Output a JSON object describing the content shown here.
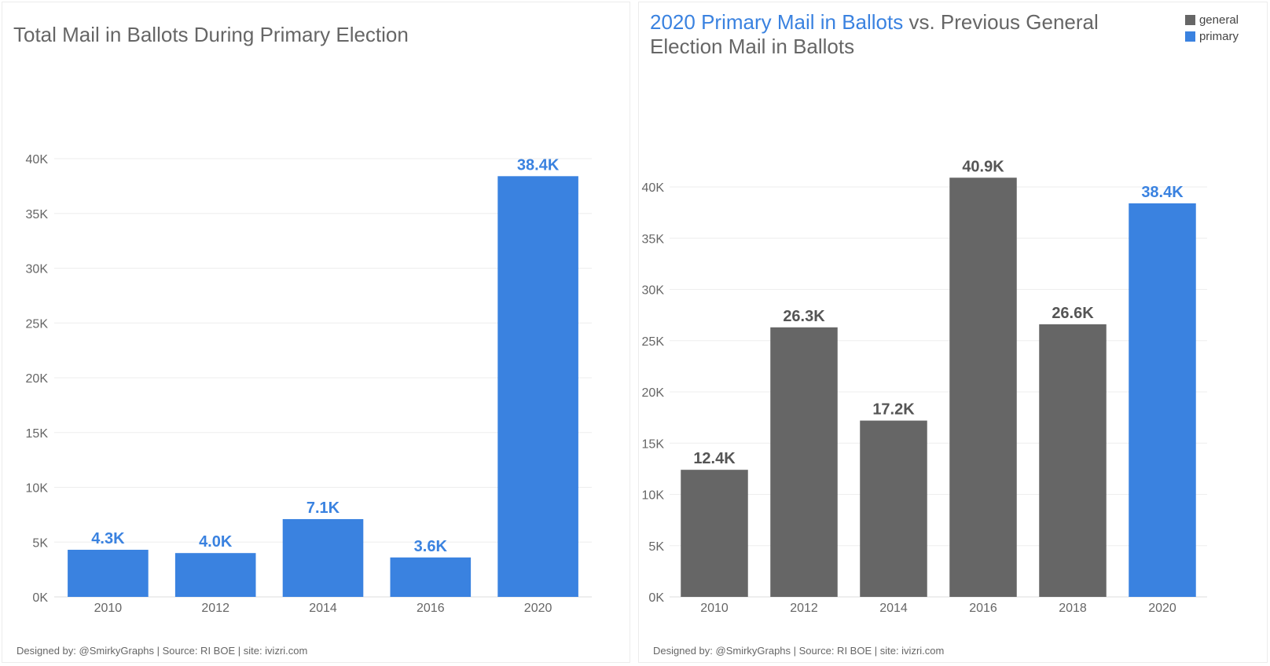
{
  "left": {
    "title": "Total Mail in Ballots During Primary Election",
    "footer": "Designed by: @SmirkyGraphs  |  Source: RI BOE  |  site: ivizri.com",
    "colors": {
      "bar": "#3a82e0",
      "label": "#3a82e0"
    }
  },
  "right": {
    "title_highlight": "2020 Primary Mail in Ballots",
    "title_rest": " vs. Previous General Election Mail in Ballots",
    "footer": "Designed by: @SmirkyGraphs  |  Source: RI BOE  |  site: ivizri.com",
    "legend": [
      {
        "label": "general",
        "color": "#666666"
      },
      {
        "label": "primary",
        "color": "#3a82e0"
      }
    ]
  },
  "chart_data": [
    {
      "type": "bar",
      "title": "Total Mail in Ballots During Primary Election",
      "categories": [
        "2010",
        "2012",
        "2014",
        "2016",
        "2020"
      ],
      "values": [
        4300,
        4000,
        7100,
        3600,
        38400
      ],
      "data_labels": [
        "4.3K",
        "4.0K",
        "7.1K",
        "3.6K",
        "38.4K"
      ],
      "ylim": [
        0,
        40000
      ],
      "yticks": [
        0,
        5000,
        10000,
        15000,
        20000,
        25000,
        30000,
        35000,
        40000
      ],
      "ytick_labels": [
        "0K",
        "5K",
        "10K",
        "15K",
        "20K",
        "25K",
        "30K",
        "35K",
        "40K"
      ],
      "grid": true,
      "bar_color": "#3a82e0"
    },
    {
      "type": "bar",
      "title": "2020 Primary Mail in Ballots vs. Previous General Election Mail in Ballots",
      "categories": [
        "2010",
        "2012",
        "2014",
        "2016",
        "2018",
        "2020"
      ],
      "values": [
        12400,
        26300,
        17200,
        40900,
        26600,
        38400
      ],
      "data_labels": [
        "12.4K",
        "26.3K",
        "17.2K",
        "40.9K",
        "26.6K",
        "38.4K"
      ],
      "series_of_bar": [
        "general",
        "general",
        "general",
        "general",
        "general",
        "primary"
      ],
      "series_colors": {
        "general": "#666666",
        "primary": "#3a82e0"
      },
      "ylim": [
        0,
        40000
      ],
      "yticks": [
        0,
        5000,
        10000,
        15000,
        20000,
        25000,
        30000,
        35000,
        40000
      ],
      "ytick_labels": [
        "0K",
        "5K",
        "10K",
        "15K",
        "20K",
        "25K",
        "30K",
        "35K",
        "40K"
      ],
      "grid": true,
      "legend_position": "top-right"
    }
  ]
}
